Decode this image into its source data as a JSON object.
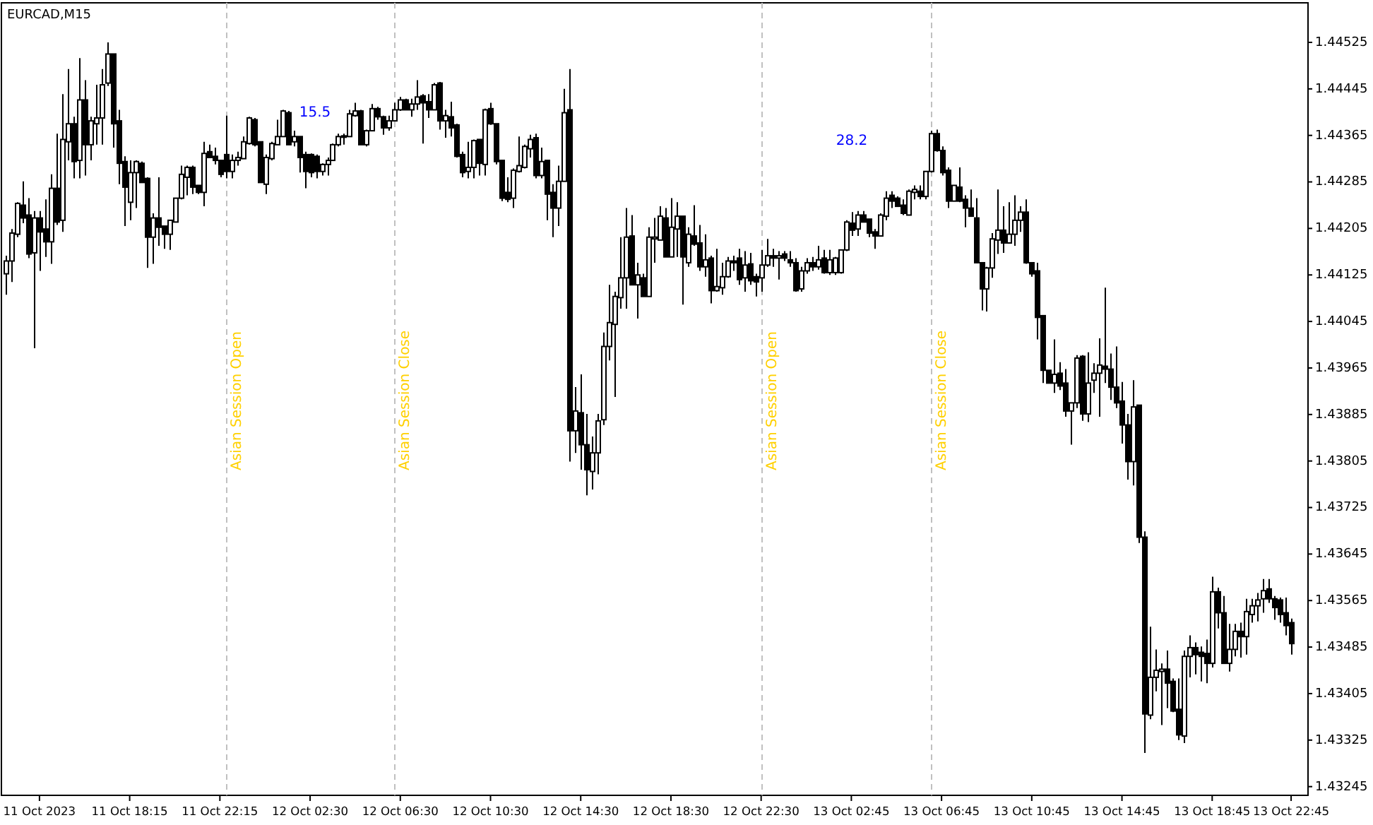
{
  "chart_data": {
    "type": "candlestick",
    "title": "EURCAD,M15",
    "categories": [
      null,
      null,
      null,
      null,
      null,
      null,
      "11 Oct 2023",
      null,
      null,
      null,
      null,
      null,
      null,
      null,
      null,
      null,
      null,
      null,
      null,
      null,
      null,
      null,
      "11 Oct 18:15",
      null,
      null,
      null,
      null,
      null,
      null,
      null,
      null,
      null,
      null,
      null,
      null,
      null,
      null,
      null,
      "11 Oct 22:15",
      null,
      null,
      null,
      null,
      null,
      null,
      null,
      null,
      null,
      null,
      null,
      null,
      null,
      null,
      null,
      "12 Oct 02:30",
      null,
      null,
      null,
      null,
      null,
      null,
      null,
      null,
      null,
      null,
      null,
      null,
      null,
      null,
      null,
      "12 Oct 06:30",
      null,
      null,
      null,
      null,
      null,
      null,
      null,
      null,
      null,
      null,
      null,
      null,
      null,
      null,
      null,
      "12 Oct 10:30",
      null,
      null,
      null,
      null,
      null,
      null,
      null,
      null,
      null,
      null,
      null,
      null,
      null,
      null,
      null,
      "12 Oct 14:30",
      null,
      null,
      null,
      null,
      null,
      null,
      null,
      null,
      null,
      null,
      null,
      null,
      null,
      null,
      null,
      "12 Oct 18:30",
      null,
      null,
      null,
      null,
      null,
      null,
      null,
      null,
      null,
      null,
      null,
      null,
      null,
      null,
      null,
      "12 Oct 22:30",
      null,
      null,
      null,
      null,
      null,
      null,
      null,
      null,
      null,
      null,
      null,
      null,
      null,
      null,
      null,
      "13 Oct 02:45",
      null,
      null,
      null,
      null,
      null,
      null,
      null,
      null,
      null,
      null,
      null,
      null,
      null,
      null,
      null,
      "13 Oct 06:45",
      null,
      null,
      null,
      null,
      null,
      null,
      null,
      null,
      null,
      null,
      null,
      null,
      null,
      null,
      null,
      "13 Oct 10:45",
      null,
      null,
      null,
      null,
      null,
      null,
      null,
      null,
      null,
      null,
      null,
      null,
      null,
      null,
      null,
      "13 Oct 14:45",
      null,
      null,
      null,
      null,
      null,
      null,
      null,
      null,
      null,
      null,
      null,
      null,
      null,
      null,
      null,
      "13 Oct 18:45",
      null,
      null,
      null,
      null,
      null,
      null,
      null,
      null,
      null,
      null,
      null,
      null,
      null,
      "13 Oct 22:45"
    ],
    "ohlc": [
      [
        1.44127,
        1.44158,
        1.44091,
        1.44149
      ],
      [
        1.44149,
        1.44204,
        1.44113,
        1.44197
      ],
      [
        1.44195,
        1.4425,
        1.4419,
        1.44248
      ],
      [
        1.44245,
        1.44286,
        1.44214,
        1.44223
      ],
      [
        1.44228,
        1.44257,
        1.44154,
        1.44161
      ],
      [
        1.44163,
        1.44235,
        1.43999,
        1.44223
      ],
      [
        1.44223,
        1.44235,
        1.44132,
        1.44199
      ],
      [
        1.44204,
        1.44255,
        1.44156,
        1.44182
      ],
      [
        1.44182,
        1.44298,
        1.44144,
        1.44274
      ],
      [
        1.44274,
        1.44368,
        1.44211,
        1.44216
      ],
      [
        1.44219,
        1.44436,
        1.44199,
        1.44358
      ],
      [
        1.44354,
        1.44479,
        1.44322,
        1.44385
      ],
      [
        1.44385,
        1.44397,
        1.44291,
        1.4432
      ],
      [
        1.44322,
        1.44498,
        1.44291,
        1.44426
      ],
      [
        1.44426,
        1.4446,
        1.44296,
        1.44349
      ],
      [
        1.44349,
        1.44397,
        1.44322,
        1.4439
      ],
      [
        1.44385,
        1.44452,
        1.44349,
        1.44395
      ],
      [
        1.44395,
        1.44479,
        1.44349,
        1.44452
      ],
      [
        1.44455,
        1.44525,
        1.4445,
        1.44505
      ],
      [
        1.44505,
        1.44505,
        1.44344,
        1.44385
      ],
      [
        1.4439,
        1.44409,
        1.44281,
        1.44317
      ],
      [
        1.4432,
        1.44329,
        1.44209,
        1.44276
      ],
      [
        1.4425,
        1.44322,
        1.44219,
        1.44301
      ],
      [
        1.44301,
        1.44322,
        1.4424,
        1.4432
      ],
      [
        1.44317,
        1.4432,
        1.44284,
        1.44284
      ],
      [
        1.44291,
        1.44293,
        1.44137,
        1.4419
      ],
      [
        1.4419,
        1.44231,
        1.44144,
        1.44223
      ],
      [
        1.44223,
        1.44293,
        1.44175,
        1.44207
      ],
      [
        1.44209,
        1.44209,
        1.4417,
        1.44195
      ],
      [
        1.44195,
        1.44219,
        1.44168,
        1.44219
      ],
      [
        1.44216,
        1.44257,
        1.44216,
        1.44257
      ],
      [
        1.44257,
        1.44313,
        1.44255,
        1.44298
      ],
      [
        1.44293,
        1.44313,
        1.44262,
        1.4431
      ],
      [
        1.4431,
        1.44313,
        1.44264,
        1.44276
      ],
      [
        1.44279,
        1.44279,
        1.44264,
        1.44267
      ],
      [
        1.44267,
        1.44354,
        1.44243,
        1.44334
      ],
      [
        1.44337,
        1.44349,
        1.44327,
        1.44327
      ],
      [
        1.44329,
        1.44344,
        1.44315,
        1.44322
      ],
      [
        1.44322,
        1.44322,
        1.44293,
        1.44298
      ],
      [
        1.44332,
        1.44399,
        1.44291,
        1.44303
      ],
      [
        1.44303,
        1.44332,
        1.44291,
        1.44322
      ],
      [
        1.44322,
        1.44337,
        1.44313,
        1.44327
      ],
      [
        1.44325,
        1.44363,
        1.44325,
        1.44354
      ],
      [
        1.44351,
        1.44397,
        1.44349,
        1.44395
      ],
      [
        1.44392,
        1.44395,
        1.44346,
        1.44349
      ],
      [
        1.44354,
        1.44354,
        1.44284,
        1.44284
      ],
      [
        1.44281,
        1.44332,
        1.44264,
        1.44327
      ],
      [
        1.44325,
        1.44354,
        1.44322,
        1.44351
      ],
      [
        1.44349,
        1.44392,
        1.44349,
        1.44363
      ],
      [
        1.44363,
        1.44409,
        1.44363,
        1.44407
      ],
      [
        1.44404,
        1.44407,
        1.44349,
        1.44349
      ],
      [
        1.44354,
        1.44373,
        1.44346,
        1.44363
      ],
      [
        1.44363,
        1.44363,
        1.44301,
        1.44327
      ],
      [
        1.44332,
        1.44337,
        1.44274,
        1.44303
      ],
      [
        1.44332,
        1.44334,
        1.44293,
        1.44301
      ],
      [
        1.44329,
        1.44332,
        1.44291,
        1.44303
      ],
      [
        1.44303,
        1.44317,
        1.44296,
        1.44315
      ],
      [
        1.44315,
        1.44327,
        1.44296,
        1.44322
      ],
      [
        1.44322,
        1.44351,
        1.44322,
        1.44349
      ],
      [
        1.44349,
        1.44368,
        1.44346,
        1.44363
      ],
      [
        1.44363,
        1.44368,
        1.44349,
        1.44363
      ],
      [
        1.44363,
        1.44409,
        1.44363,
        1.44402
      ],
      [
        1.44399,
        1.44421,
        1.44397,
        1.44407
      ],
      [
        1.44407,
        1.44409,
        1.44349,
        1.44349
      ],
      [
        1.44349,
        1.44375,
        1.44346,
        1.44373
      ],
      [
        1.44373,
        1.44419,
        1.44373,
        1.44411
      ],
      [
        1.44411,
        1.44414,
        1.44392,
        1.44397
      ],
      [
        1.44397,
        1.44399,
        1.44366,
        1.44378
      ],
      [
        1.44378,
        1.44399,
        1.44373,
        1.4439
      ],
      [
        1.4439,
        1.44421,
        1.4439,
        1.44409
      ],
      [
        1.44409,
        1.44431,
        1.44407,
        1.44426
      ],
      [
        1.44426,
        1.44428,
        1.44409,
        1.44409
      ],
      [
        1.44409,
        1.44428,
        1.44397,
        1.44419
      ],
      [
        1.44419,
        1.4446,
        1.44409,
        1.44431
      ],
      [
        1.44433,
        1.44436,
        1.44351,
        1.44421
      ],
      [
        1.44423,
        1.44436,
        1.44395,
        1.44409
      ],
      [
        1.44409,
        1.44455,
        1.44409,
        1.44452
      ],
      [
        1.44455,
        1.44457,
        1.44375,
        1.4439
      ],
      [
        1.4439,
        1.44409,
        1.44361,
        1.44399
      ],
      [
        1.44397,
        1.44423,
        1.44363,
        1.44378
      ],
      [
        1.44383,
        1.44385,
        1.44327,
        1.44329
      ],
      [
        1.44332,
        1.44337,
        1.44293,
        1.44301
      ],
      [
        1.44303,
        1.44354,
        1.44291,
        1.4431
      ],
      [
        1.4431,
        1.44358,
        1.44291,
        1.44356
      ],
      [
        1.44358,
        1.44358,
        1.44296,
        1.44317
      ],
      [
        1.44315,
        1.44411,
        1.44296,
        1.44409
      ],
      [
        1.44411,
        1.44421,
        1.44383,
        1.44385
      ],
      [
        1.44385,
        1.44385,
        1.44315,
        1.4432
      ],
      [
        1.44322,
        1.44322,
        1.44252,
        1.44257
      ],
      [
        1.44267,
        1.44293,
        1.4425,
        1.44255
      ],
      [
        1.44257,
        1.44308,
        1.4424,
        1.44305
      ],
      [
        1.44303,
        1.44363,
        1.44301,
        1.44313
      ],
      [
        1.4431,
        1.44349,
        1.44308,
        1.44346
      ],
      [
        1.44342,
        1.44366,
        1.44327,
        1.44358
      ],
      [
        1.44361,
        1.44368,
        1.44291,
        1.44296
      ],
      [
        1.44296,
        1.44344,
        1.44291,
        1.4432
      ],
      [
        1.44322,
        1.44322,
        1.44219,
        1.44264
      ],
      [
        1.44267,
        1.44281,
        1.4419,
        1.4424
      ],
      [
        1.4424,
        1.44313,
        1.44209,
        1.44286
      ],
      [
        1.44286,
        1.44445,
        1.44286,
        1.44404
      ],
      [
        1.44409,
        1.44479,
        1.43804,
        1.43857
      ],
      [
        1.43857,
        1.43932,
        1.43819,
        1.43891
      ],
      [
        1.43888,
        1.43954,
        1.4379,
        1.43833
      ],
      [
        1.43833,
        1.43886,
        1.43746,
        1.4379
      ],
      [
        1.43787,
        1.43847,
        1.43756,
        1.43819
      ],
      [
        1.43819,
        1.43886,
        1.43782,
        1.43874
      ],
      [
        1.43876,
        1.44026,
        1.43867,
        1.44002
      ],
      [
        1.44002,
        1.44108,
        1.43978,
        1.44043
      ],
      [
        1.4404,
        1.44096,
        1.43915,
        1.44088
      ],
      [
        1.44086,
        1.4419,
        1.44067,
        1.4412
      ],
      [
        1.4412,
        1.4424,
        1.44067,
        1.4419
      ],
      [
        1.44192,
        1.44228,
        1.44108,
        1.44108
      ],
      [
        1.44108,
        1.44146,
        1.4405,
        1.44125
      ],
      [
        1.4412,
        1.44127,
        1.44088,
        1.44088
      ],
      [
        1.44088,
        1.44207,
        1.44088,
        1.4419
      ],
      [
        1.44187,
        1.44223,
        1.44146,
        1.4419
      ],
      [
        1.44185,
        1.44243,
        1.44185,
        1.44226
      ],
      [
        1.44223,
        1.4424,
        1.44156,
        1.44156
      ],
      [
        1.44156,
        1.44257,
        1.44156,
        1.44207
      ],
      [
        1.44204,
        1.4425,
        1.44156,
        1.44226
      ],
      [
        1.44226,
        1.44226,
        1.44074,
        1.44156
      ],
      [
        1.44146,
        1.44207,
        1.44139,
        1.44195
      ],
      [
        1.44192,
        1.44245,
        1.44175,
        1.44178
      ],
      [
        1.4418,
        1.44211,
        1.44132,
        1.44139
      ],
      [
        1.44139,
        1.44195,
        1.44122,
        1.44151
      ],
      [
        1.44154,
        1.44158,
        1.44076,
        1.44098
      ],
      [
        1.44098,
        1.4417,
        1.44096,
        1.44105
      ],
      [
        1.44103,
        1.44146,
        1.44091,
        1.44122
      ],
      [
        1.44122,
        1.44156,
        1.4412,
        1.44149
      ],
      [
        1.44149,
        1.44158,
        1.44132,
        1.44146
      ],
      [
        1.44154,
        1.4417,
        1.44108,
        1.44117
      ],
      [
        1.4412,
        1.44166,
        1.44096,
        1.44142
      ],
      [
        1.44144,
        1.44163,
        1.44108,
        1.44115
      ],
      [
        1.44122,
        1.44127,
        1.44088,
        1.44113
      ],
      [
        1.4412,
        1.44168,
        1.44096,
        1.44142
      ],
      [
        1.44142,
        1.44187,
        1.44139,
        1.44158
      ],
      [
        1.44158,
        1.4417,
        1.44139,
        1.44154
      ],
      [
        1.44154,
        1.44166,
        1.44117,
        1.44158
      ],
      [
        1.44161,
        1.44166,
        1.44149,
        1.44154
      ],
      [
        1.44151,
        1.44166,
        1.44139,
        1.44146
      ],
      [
        1.44146,
        1.44154,
        1.44096,
        1.44098
      ],
      [
        1.44101,
        1.44139,
        1.44096,
        1.44132
      ],
      [
        1.44132,
        1.44154,
        1.44127,
        1.44146
      ],
      [
        1.44146,
        1.44156,
        1.44132,
        1.44139
      ],
      [
        1.44139,
        1.44175,
        1.44134,
        1.44151
      ],
      [
        1.44154,
        1.44168,
        1.44127,
        1.44129
      ],
      [
        1.44129,
        1.44168,
        1.44125,
        1.44151
      ],
      [
        1.44129,
        1.44156,
        1.44125,
        1.44154
      ],
      [
        1.44129,
        1.44168,
        1.44127,
        1.44168
      ],
      [
        1.44168,
        1.44219,
        1.44166,
        1.44216
      ],
      [
        1.44214,
        1.44233,
        1.44192,
        1.44202
      ],
      [
        1.44204,
        1.44235,
        1.44192,
        1.44228
      ],
      [
        1.44228,
        1.44235,
        1.44216,
        1.44216
      ],
      [
        1.44221,
        1.44221,
        1.4419,
        1.44197
      ],
      [
        1.44199,
        1.44204,
        1.4417,
        1.44192
      ],
      [
        1.44192,
        1.44231,
        1.44192,
        1.44228
      ],
      [
        1.44226,
        1.44269,
        1.44219,
        1.44257
      ],
      [
        1.44262,
        1.44269,
        1.4424,
        1.44252
      ],
      [
        1.44257,
        1.4426,
        1.44243,
        1.44243
      ],
      [
        1.44245,
        1.44255,
        1.44228,
        1.44231
      ],
      [
        1.44228,
        1.44272,
        1.44228,
        1.44269
      ],
      [
        1.44267,
        1.44279,
        1.44255,
        1.44272
      ],
      [
        1.44269,
        1.44279,
        1.44255,
        1.4426
      ],
      [
        1.4426,
        1.44303,
        1.44255,
        1.44303
      ],
      [
        1.44303,
        1.44373,
        1.44301,
        1.44368
      ],
      [
        1.44368,
        1.44375,
        1.44337,
        1.44339
      ],
      [
        1.44339,
        1.44346,
        1.44296,
        1.44301
      ],
      [
        1.44305,
        1.4431,
        1.4424,
        1.44252
      ],
      [
        1.44252,
        1.44279,
        1.44252,
        1.44279
      ],
      [
        1.44276,
        1.4431,
        1.4425,
        1.44252
      ],
      [
        1.44255,
        1.44262,
        1.44207,
        1.4424
      ],
      [
        1.4424,
        1.44272,
        1.44226,
        1.44226
      ],
      [
        1.44223,
        1.44257,
        1.44146,
        1.44146
      ],
      [
        1.44146,
        1.44146,
        1.44064,
        1.44101
      ],
      [
        1.44101,
        1.44139,
        1.44062,
        1.44137
      ],
      [
        1.44137,
        1.44197,
        1.4412,
        1.44187
      ],
      [
        1.44185,
        1.44272,
        1.44161,
        1.44202
      ],
      [
        1.44202,
        1.44243,
        1.44163,
        1.4418
      ],
      [
        1.4418,
        1.4425,
        1.4418,
        1.44195
      ],
      [
        1.44195,
        1.44262,
        1.44175,
        1.44219
      ],
      [
        1.44219,
        1.44243,
        1.44199,
        1.44233
      ],
      [
        1.44233,
        1.44255,
        1.44144,
        1.44146
      ],
      [
        1.44146,
        1.44146,
        1.44122,
        1.44127
      ],
      [
        1.44132,
        1.44146,
        1.44014,
        1.44052
      ],
      [
        1.44055,
        1.44055,
        1.43939,
        1.43961
      ],
      [
        1.43961,
        1.43961,
        1.43939,
        1.43939
      ],
      [
        1.43939,
        1.44014,
        1.43922,
        1.43954
      ],
      [
        1.43956,
        1.43975,
        1.43927,
        1.43934
      ],
      [
        1.43939,
        1.43963,
        1.43881,
        1.43891
      ],
      [
        1.43891,
        1.43905,
        1.43833,
        1.43905
      ],
      [
        1.43905,
        1.43987,
        1.43896,
        1.43982
      ],
      [
        1.43985,
        1.43987,
        1.43874,
        1.43886
      ],
      [
        1.43886,
        1.43992,
        1.43872,
        1.43939
      ],
      [
        1.43944,
        1.43973,
        1.43922,
        1.43956
      ],
      [
        1.43956,
        1.44016,
        1.43881,
        1.4397
      ],
      [
        1.43968,
        1.44103,
        1.43939,
        1.43963
      ],
      [
        1.43963,
        1.4399,
        1.4391,
        1.43932
      ],
      [
        1.43932,
        1.44002,
        1.43896,
        1.43905
      ],
      [
        1.43908,
        1.43941,
        1.43835,
        1.43867
      ],
      [
        1.43867,
        1.43886,
        1.43773,
        1.43804
      ],
      [
        1.43804,
        1.43944,
        1.43763,
        1.43898
      ],
      [
        1.43901,
        1.43901,
        1.43664,
        1.43674
      ],
      [
        1.43674,
        1.43684,
        1.43303,
        1.4337
      ],
      [
        1.43368,
        1.4352,
        1.43361,
        1.43433
      ],
      [
        1.43433,
        1.43481,
        1.43409,
        1.43445
      ],
      [
        1.43443,
        1.43457,
        1.43351,
        1.43447
      ],
      [
        1.43447,
        1.43479,
        1.4338,
        1.43423
      ],
      [
        1.43426,
        1.43431,
        1.43373,
        1.43375
      ],
      [
        1.43378,
        1.43431,
        1.43325,
        1.43334
      ],
      [
        1.43332,
        1.43479,
        1.4332,
        1.43469
      ],
      [
        1.43469,
        1.43505,
        1.43433,
        1.43484
      ],
      [
        1.43484,
        1.43493,
        1.43438,
        1.43472
      ],
      [
        1.43476,
        1.43486,
        1.43426,
        1.43469
      ],
      [
        1.43474,
        1.43498,
        1.43423,
        1.43457
      ],
      [
        1.43457,
        1.43606,
        1.4345,
        1.4358
      ],
      [
        1.4358,
        1.43587,
        1.43517,
        1.43544
      ],
      [
        1.43544,
        1.43573,
        1.43457,
        1.43457
      ],
      [
        1.43457,
        1.43525,
        1.43443,
        1.43481
      ],
      [
        1.43481,
        1.43525,
        1.43469,
        1.43512
      ],
      [
        1.43512,
        1.43527,
        1.43467,
        1.43503
      ],
      [
        1.43503,
        1.43568,
        1.43472,
        1.43546
      ],
      [
        1.43541,
        1.43568,
        1.43527,
        1.43556
      ],
      [
        1.43556,
        1.43578,
        1.43529,
        1.43566
      ],
      [
        1.43568,
        1.43602,
        1.43544,
        1.43582
      ],
      [
        1.43585,
        1.43602,
        1.43561,
        1.43568
      ],
      [
        1.43568,
        1.43573,
        1.43532,
        1.43553
      ],
      [
        1.43566,
        1.4357,
        1.43527,
        1.43541
      ],
      [
        1.43544,
        1.4357,
        1.43505,
        1.43522
      ],
      [
        1.43527,
        1.43534,
        1.43472,
        1.43491
      ]
    ],
    "ylim": [
      1.4323,
      1.44593
    ],
    "yticks": [
      1.44525,
      1.44445,
      1.44365,
      1.44285,
      1.44205,
      1.44125,
      1.44045,
      1.43965,
      1.43885,
      1.43805,
      1.43725,
      1.43645,
      1.43565,
      1.43485,
      1.43405,
      1.43325,
      1.43245
    ],
    "annotations": [
      "Asian Session Open",
      "Asian Session Close",
      "Asian Session Open",
      "Asian Session Close",
      "15.5",
      "28.2"
    ]
  }
}
